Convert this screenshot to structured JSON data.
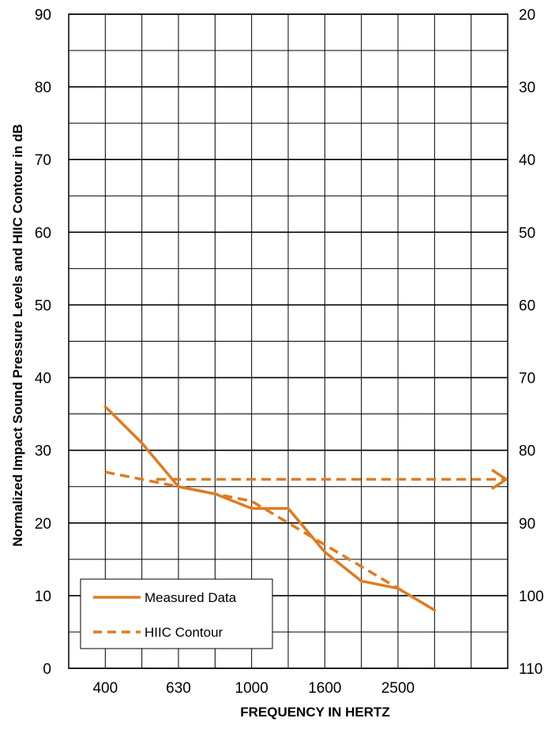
{
  "chart_data": {
    "type": "line",
    "title": "",
    "xlabel": "FREQUENCY IN HERTZ",
    "ylabel": "Normalized Impact Sound Pressure Levels and HIIC Contour in dB",
    "x": [
      "315",
      "400",
      "500",
      "630",
      "800",
      "1000",
      "1250",
      "1600",
      "2000",
      "2500",
      "3150",
      "4000",
      "5000"
    ],
    "x_tick_labels": [
      "400",
      "630",
      "1000",
      "1600",
      "2500"
    ],
    "ylim": [
      0,
      90
    ],
    "y_ticks": [
      "0",
      "10",
      "20",
      "30",
      "40",
      "50",
      "60",
      "70",
      "80",
      "90"
    ],
    "y2lim": [
      110,
      20
    ],
    "y2_ticks": [
      "110",
      "100",
      "90",
      "80",
      "70",
      "60",
      "50",
      "40",
      "30",
      "20"
    ],
    "grid": true,
    "legend_position": "bottom-left",
    "series": [
      {
        "name": "Measured Data",
        "style": "solid",
        "color": "#E07B20",
        "values": [
          null,
          36,
          31,
          25,
          24,
          22,
          22,
          16,
          12,
          11,
          8,
          null,
          null
        ]
      },
      {
        "name": "HIIC Contour",
        "style": "dashed",
        "color": "#E07B20",
        "values": [
          null,
          27,
          26,
          25,
          24,
          23,
          20,
          17,
          14,
          11,
          8,
          null,
          null
        ],
        "extension": {
          "y": 26,
          "arrow": "right"
        }
      }
    ]
  }
}
